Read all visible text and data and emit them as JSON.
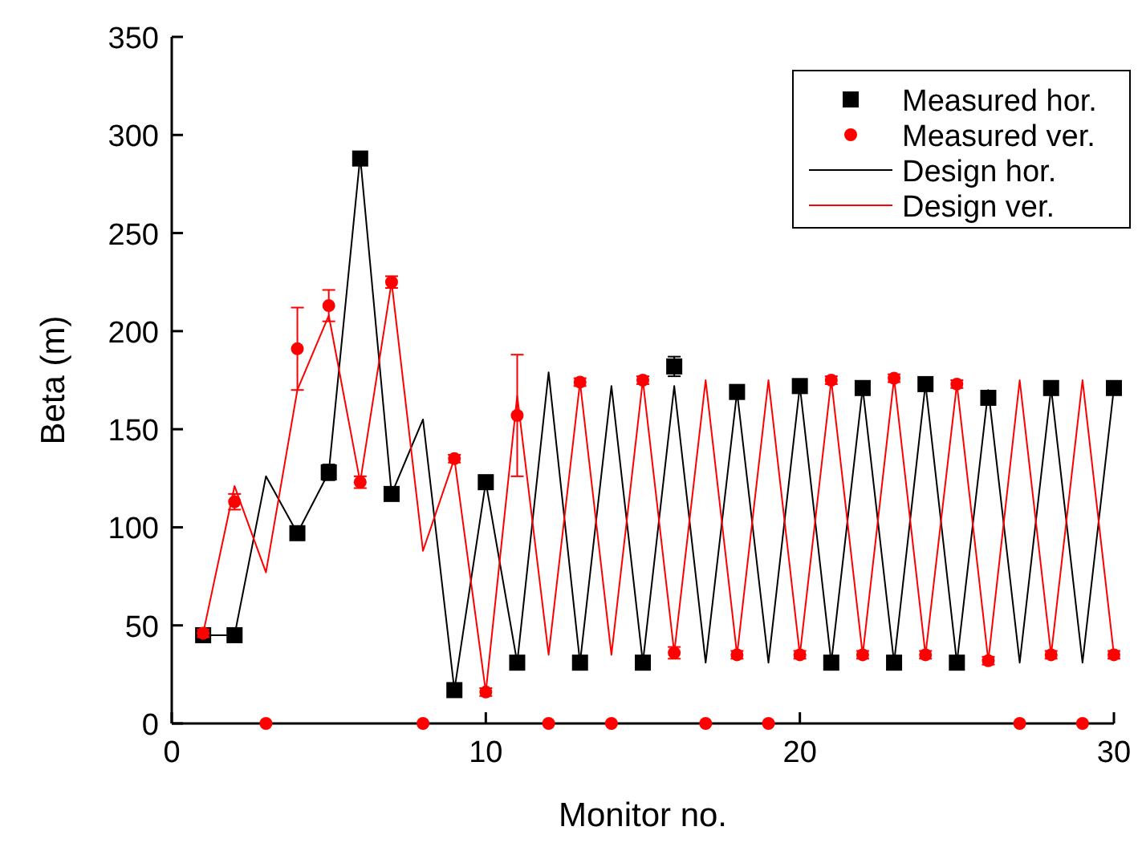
{
  "chart_data": {
    "type": "scatter",
    "xlabel": "Monitor no.",
    "ylabel": "Beta (m)",
    "x": [
      1,
      2,
      3,
      4,
      5,
      6,
      7,
      8,
      9,
      10,
      11,
      12,
      13,
      14,
      15,
      16,
      17,
      18,
      19,
      20,
      21,
      22,
      23,
      24,
      25,
      26,
      27,
      28,
      29,
      30
    ],
    "xlim": [
      0,
      30
    ],
    "xticks": [
      0,
      10,
      20,
      30
    ],
    "ylim": [
      0,
      350
    ],
    "yticks": [
      0,
      50,
      100,
      150,
      200,
      250,
      300,
      350
    ],
    "grid": false,
    "legend": "top right",
    "series": [
      {
        "name": "Measured hor.",
        "marker": "square",
        "color": "#000000",
        "values": [
          45,
          45,
          null,
          97,
          128,
          288,
          117,
          null,
          17,
          123,
          31,
          null,
          31,
          null,
          31,
          182,
          null,
          169,
          null,
          172,
          31,
          171,
          31,
          173,
          31,
          166,
          null,
          171,
          null,
          171
        ],
        "errors": [
          2,
          2,
          null,
          3,
          4,
          2,
          2,
          null,
          2,
          2,
          2,
          null,
          2,
          null,
          2,
          5,
          null,
          2,
          null,
          2,
          2,
          2,
          2,
          2,
          2,
          3,
          null,
          2,
          null,
          2
        ]
      },
      {
        "name": "Measured ver.",
        "marker": "circle",
        "color": "#ff0000",
        "values": [
          46,
          113,
          0,
          191,
          213,
          123,
          225,
          0,
          135,
          16,
          157,
          0,
          174,
          0,
          175,
          36,
          0,
          35,
          0,
          35,
          175,
          35,
          176,
          35,
          173,
          32,
          0,
          35,
          0,
          35
        ],
        "errors": [
          2,
          4,
          null,
          21,
          8,
          3,
          3,
          null,
          2,
          2,
          31,
          null,
          2,
          null,
          2,
          3,
          null,
          2,
          null,
          2,
          2,
          2,
          2,
          2,
          2,
          2,
          null,
          2,
          null,
          2
        ]
      },
      {
        "name": "Design hor.",
        "type": "line",
        "marker": "none",
        "color": "#000000",
        "values": [
          45,
          45,
          126,
          97,
          128,
          289,
          117,
          155,
          17,
          123,
          31,
          179,
          31,
          172,
          31,
          172,
          31,
          169,
          31,
          172,
          31,
          171,
          31,
          173,
          31,
          170,
          31,
          171,
          31,
          171
        ]
      },
      {
        "name": "Design ver.",
        "type": "line",
        "marker": "none",
        "color": "#ff0000",
        "values": [
          46,
          121,
          77,
          170,
          208,
          123,
          225,
          88,
          135,
          16,
          167,
          35,
          174,
          35,
          175,
          36,
          175,
          35,
          175,
          35,
          175,
          35,
          176,
          35,
          173,
          32,
          175,
          35,
          175,
          35
        ]
      }
    ]
  }
}
